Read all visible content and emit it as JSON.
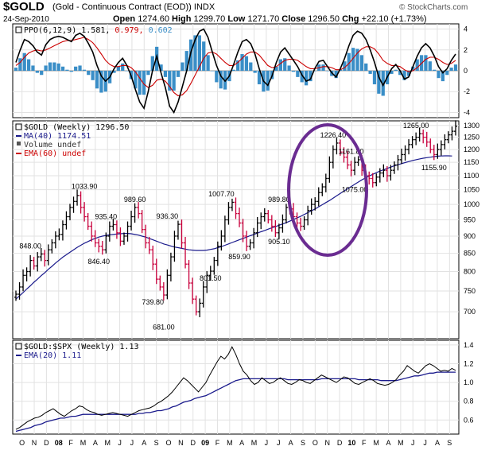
{
  "header": {
    "ticker": "$GOLD",
    "description": "(Gold - Continuous Contract (EOD))",
    "exchange": "INDX",
    "date": "24-Sep-2010",
    "open_label": "Open",
    "open": "1274.60",
    "high_label": "High",
    "high": "1299.70",
    "low_label": "Low",
    "low": "1271.70",
    "close_label": "Close",
    "close": "1296.50",
    "chg_label": "Chg",
    "chg": "+22.10 (+1.73%)",
    "logo": "© StockCharts.com"
  },
  "chart_data": [
    {
      "type": "line",
      "panel": "ppo",
      "legend": [
        {
          "text": "PPO(6,12,9)",
          "color": "#000000"
        },
        {
          "text": "1.581,",
          "color": "#000000"
        },
        {
          "text": "0.979,",
          "color": "#cc0000"
        },
        {
          "text": "0.602",
          "color": "#3a8ec7"
        }
      ],
      "ylim": [
        -4.5,
        4.5
      ],
      "ticks": [
        "4",
        "2",
        "0",
        "-2",
        "-4"
      ],
      "series": [
        {
          "key": "ppo",
          "color": "#000000",
          "values": [
            0.8,
            2.0,
            3.0,
            2.8,
            2.4,
            1.8,
            1.5,
            2.5,
            3.0,
            3.2,
            3.3,
            3.2,
            3.0,
            2.8,
            3.4,
            3.6,
            3.3,
            2.6,
            1.8,
            0.5,
            -0.5,
            -1.0,
            -0.6,
            0.2,
            0.8,
            1.2,
            0.5,
            -0.5,
            -1.8,
            -3.0,
            -3.6,
            -2.0,
            0.0,
            1.4,
            -0.2,
            -1.6,
            -3.4,
            -4.0,
            -3.0,
            -1.5,
            0.0,
            1.8,
            3.0,
            3.8,
            4.0,
            3.2,
            1.8,
            0.5,
            -0.5,
            -1.0,
            -0.5,
            0.6,
            1.8,
            2.8,
            3.0,
            2.6,
            1.6,
            0.2,
            -1.0,
            -1.4,
            -0.5,
            0.8,
            1.8,
            2.2,
            1.6,
            1.0,
            0.4,
            -0.4,
            -1.0,
            -0.8,
            0.2,
            0.9,
            1.0,
            0.4,
            -0.2,
            -0.6,
            0.2,
            1.2,
            2.4,
            3.4,
            3.8,
            3.6,
            3.0,
            2.0,
            0.8,
            -0.6,
            -1.4,
            -0.6,
            0.2,
            0.6,
            0.0,
            -0.8,
            -0.6,
            0.4,
            1.4,
            2.2,
            2.6,
            2.2,
            1.4,
            0.4,
            -0.2,
            0.2,
            1.0,
            1.6
          ]
        },
        {
          "key": "signal",
          "color": "#cc0000",
          "values": [
            0.5,
            0.8,
            1.3,
            1.7,
            1.9,
            2.0,
            1.9,
            2.0,
            2.2,
            2.4,
            2.6,
            2.8,
            2.9,
            2.9,
            3.0,
            3.1,
            3.2,
            3.0,
            2.7,
            2.2,
            1.6,
            1.0,
            0.6,
            0.4,
            0.4,
            0.5,
            0.5,
            0.3,
            -0.1,
            -0.7,
            -1.3,
            -1.6,
            -1.4,
            -0.9,
            -0.8,
            -1.0,
            -1.5,
            -2.1,
            -2.4,
            -2.3,
            -1.9,
            -1.2,
            -0.4,
            0.4,
            1.2,
            1.7,
            1.8,
            1.6,
            1.2,
            0.8,
            0.5,
            0.5,
            0.8,
            1.2,
            1.6,
            1.8,
            1.8,
            1.5,
            1.0,
            0.5,
            0.3,
            0.4,
            0.7,
            1.0,
            1.1,
            1.1,
            1.0,
            0.7,
            0.4,
            0.2,
            0.2,
            0.3,
            0.4,
            0.4,
            0.3,
            0.1,
            0.1,
            0.3,
            0.7,
            1.2,
            1.7,
            2.1,
            2.3,
            2.3,
            2.1,
            1.6,
            1.0,
            0.7,
            0.5,
            0.5,
            0.4,
            0.1,
            -0.1,
            0.0,
            0.3,
            0.7,
            1.1,
            1.3,
            1.3,
            1.1,
            0.8,
            0.6,
            0.7,
            1.0
          ]
        }
      ]
    },
    {
      "type": "bar",
      "panel": "price",
      "legend": [
        {
          "text": "$GOLD (Weekly) 1296.50",
          "color": "#000000"
        },
        {
          "text": "MA(40) 1174.51",
          "color": "#1a1a8c"
        },
        {
          "text": "Volume undef",
          "color": "#333333"
        },
        {
          "text": "EMA(60) undef",
          "color": "#cc0000"
        }
      ],
      "ylim": [
        640,
        1320
      ],
      "scale": "log",
      "ticks": [
        "1300",
        "1250",
        "1200",
        "1150",
        "1100",
        "1050",
        "1000",
        "950",
        "900",
        "850",
        "800",
        "750",
        "700"
      ],
      "x_labels": [
        "O",
        "N",
        "D",
        "08",
        "F",
        "M",
        "A",
        "M",
        "J",
        "J",
        "A",
        "S",
        "O",
        "N",
        "D",
        "09",
        "F",
        "M",
        "A",
        "M",
        "J",
        "J",
        "A",
        "S",
        "O",
        "N",
        "D",
        "10",
        "F",
        "M",
        "A",
        "M",
        "J",
        "J",
        "A",
        "S"
      ],
      "bold_x_labels": [
        "08",
        "09",
        "10"
      ],
      "annotations": [
        {
          "text": "848.00",
          "week": 4,
          "value": 848
        },
        {
          "text": "1033.90",
          "week": 19,
          "value": 1033.9
        },
        {
          "text": "935.40",
          "week": 25,
          "value": 935.4
        },
        {
          "text": "846.40",
          "week": 23,
          "value": 846.4
        },
        {
          "text": "989.60",
          "week": 33,
          "value": 989.6
        },
        {
          "text": "936.30",
          "week": 42,
          "value": 936.3
        },
        {
          "text": "739.80",
          "week": 38,
          "value": 739.8
        },
        {
          "text": "681.00",
          "week": 41,
          "value": 681
        },
        {
          "text": "801.50",
          "week": 54,
          "value": 801.5
        },
        {
          "text": "1007.70",
          "week": 57,
          "value": 1007.7
        },
        {
          "text": "859.90",
          "week": 62,
          "value": 859.9
        },
        {
          "text": "989.80",
          "week": 73,
          "value": 989.8
        },
        {
          "text": "905.10",
          "week": 73,
          "value": 905.1
        },
        {
          "text": "1226.40",
          "week": 88,
          "value": 1226.4
        },
        {
          "text": "1161.80",
          "week": 93,
          "value": 1161.8
        },
        {
          "text": "1075.00",
          "week": 94,
          "value": 1075
        },
        {
          "text": "1265.00",
          "week": 111,
          "value": 1265
        },
        {
          "text": "1155.90",
          "week": 116,
          "value": 1155.9
        }
      ],
      "close": [
        742,
        760,
        790,
        800,
        830,
        815,
        840,
        848,
        830,
        860,
        880,
        900,
        905,
        935,
        960,
        990,
        1010,
        1030,
        990,
        960,
        930,
        900,
        880,
        870,
        860,
        900,
        930,
        935,
        910,
        885,
        900,
        930,
        960,
        990,
        970,
        920,
        880,
        860,
        820,
        780,
        760,
        740,
        790,
        840,
        900,
        936,
        880,
        820,
        770,
        730,
        700,
        720,
        760,
        790,
        801,
        830,
        870,
        900,
        950,
        990,
        1007,
        970,
        940,
        900,
        870,
        880,
        910,
        940,
        960,
        970,
        950,
        930,
        910,
        925,
        950,
        990,
        985,
        960,
        940,
        930,
        950,
        980,
        1000,
        1010,
        1040,
        1060,
        1090,
        1150,
        1200,
        1226,
        1190,
        1170,
        1140,
        1120,
        1150,
        1160,
        1120,
        1100,
        1090,
        1075,
        1095,
        1110,
        1120,
        1100,
        1120,
        1140,
        1160,
        1180,
        1200,
        1220,
        1240,
        1250,
        1265,
        1250,
        1230,
        1200,
        1180,
        1200,
        1220,
        1240,
        1260,
        1275,
        1296.5
      ],
      "ma40": [
        730,
        738,
        746,
        755,
        763,
        772,
        780,
        789,
        797,
        806,
        814,
        823,
        831,
        839,
        846,
        853,
        860,
        867,
        873,
        879,
        884,
        889,
        893,
        897,
        900,
        902,
        904,
        905,
        906,
        907,
        908,
        908,
        907,
        905,
        903,
        900,
        897,
        893,
        889,
        885,
        881,
        877,
        874,
        871,
        868,
        866,
        864,
        862,
        860,
        859,
        858,
        858,
        858,
        859,
        861,
        863,
        866,
        869,
        873,
        877,
        881,
        885,
        889,
        893,
        897,
        901,
        905,
        909,
        913,
        917,
        921,
        925,
        929,
        933,
        937,
        941,
        946,
        951,
        956,
        961,
        967,
        973,
        979,
        985,
        992,
        999,
        1006,
        1013,
        1021,
        1029,
        1037,
        1045,
        1053,
        1061,
        1069,
        1077,
        1085,
        1092,
        1099,
        1105,
        1111,
        1117,
        1122,
        1127,
        1132,
        1137,
        1141,
        1145,
        1149,
        1153,
        1157,
        1160,
        1163,
        1166,
        1168,
        1170,
        1172,
        1174,
        1174.5,
        1175,
        1175,
        1174.51
      ]
    },
    {
      "type": "line",
      "panel": "ratio",
      "legend": [
        {
          "text": "$GOLD:$SPX (Weekly) 1.13",
          "color": "#000000"
        },
        {
          "text": "EMA(20) 1.11",
          "color": "#1a1a8c"
        }
      ],
      "ylim": [
        0.45,
        1.45
      ],
      "ticks": [
        "1.4",
        "1.2",
        "1.0",
        "0.8",
        "0.6"
      ],
      "series": [
        {
          "key": "ratio",
          "color": "#000000",
          "values": [
            0.5,
            0.52,
            0.55,
            0.58,
            0.6,
            0.62,
            0.63,
            0.65,
            0.68,
            0.7,
            0.72,
            0.69,
            0.66,
            0.64,
            0.67,
            0.7,
            0.72,
            0.75,
            0.74,
            0.71,
            0.69,
            0.68,
            0.66,
            0.65,
            0.66,
            0.67,
            0.68,
            0.67,
            0.66,
            0.65,
            0.64,
            0.66,
            0.68,
            0.7,
            0.71,
            0.72,
            0.73,
            0.75,
            0.78,
            0.8,
            0.83,
            0.86,
            0.9,
            0.95,
            1.0,
            1.05,
            1.02,
            0.98,
            0.94,
            0.9,
            0.95,
            1.0,
            1.08,
            1.15,
            1.22,
            1.28,
            1.25,
            1.3,
            1.38,
            1.3,
            1.2,
            1.12,
            1.08,
            1.02,
            0.98,
            1.0,
            1.05,
            1.02,
            0.99,
            1.0,
            1.03,
            1.05,
            1.02,
            0.99,
            0.98,
            1.0,
            1.03,
            1.02,
            1.0,
            0.99,
            1.02,
            1.05,
            1.08,
            1.06,
            1.04,
            1.02,
            1.0,
            1.03,
            1.06,
            1.05,
            1.02,
            0.99,
            0.98,
            1.0,
            1.02,
            1.04,
            1.02,
            0.99,
            0.98,
            0.97,
            0.98,
            1.0,
            1.03,
            1.08,
            1.12,
            1.18,
            1.15,
            1.12,
            1.1,
            1.14,
            1.18,
            1.2,
            1.18,
            1.15,
            1.12,
            1.13,
            1.12,
            1.15,
            1.13
          ]
        },
        {
          "key": "ema20",
          "color": "#1a1a8c",
          "values": [
            0.48,
            0.49,
            0.5,
            0.51,
            0.52,
            0.54,
            0.55,
            0.56,
            0.58,
            0.59,
            0.6,
            0.61,
            0.62,
            0.62,
            0.63,
            0.64,
            0.64,
            0.65,
            0.66,
            0.66,
            0.66,
            0.66,
            0.66,
            0.66,
            0.66,
            0.66,
            0.66,
            0.66,
            0.66,
            0.66,
            0.66,
            0.66,
            0.66,
            0.67,
            0.67,
            0.68,
            0.68,
            0.69,
            0.7,
            0.7,
            0.71,
            0.72,
            0.74,
            0.75,
            0.77,
            0.79,
            0.8,
            0.81,
            0.83,
            0.84,
            0.85,
            0.86,
            0.88,
            0.9,
            0.92,
            0.94,
            0.96,
            0.98,
            1.0,
            1.02,
            1.03,
            1.04,
            1.04,
            1.04,
            1.04,
            1.04,
            1.04,
            1.04,
            1.04,
            1.04,
            1.04,
            1.04,
            1.04,
            1.03,
            1.03,
            1.03,
            1.03,
            1.03,
            1.03,
            1.03,
            1.03,
            1.03,
            1.04,
            1.04,
            1.04,
            1.04,
            1.04,
            1.04,
            1.04,
            1.04,
            1.04,
            1.04,
            1.03,
            1.03,
            1.03,
            1.03,
            1.03,
            1.03,
            1.02,
            1.02,
            1.02,
            1.02,
            1.02,
            1.03,
            1.04,
            1.05,
            1.06,
            1.07,
            1.07,
            1.08,
            1.09,
            1.1,
            1.1,
            1.11,
            1.11,
            1.11,
            1.11,
            1.11,
            1.11
          ]
        }
      ]
    }
  ]
}
